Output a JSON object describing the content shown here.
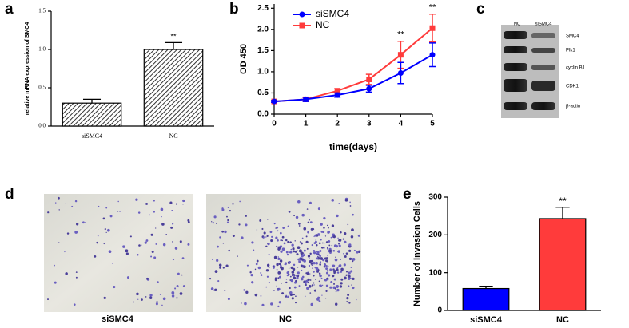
{
  "panels": [
    "a",
    "b",
    "c",
    "d",
    "e"
  ],
  "chart_data": [
    {
      "type": "bar",
      "ylabel": "relative mRNA expression of SMC4",
      "categories": [
        "siSMC4",
        "NC"
      ],
      "values": [
        0.3,
        1.0
      ],
      "errors": [
        0.05,
        0.09
      ],
      "color": "#555555",
      "hatch": true,
      "ylim": [
        0,
        1.5
      ],
      "yticks": [
        {
          "value": 0,
          "label": "0.0"
        },
        {
          "value": 0.5,
          "label": "0.5"
        },
        {
          "value": 1,
          "label": "1.0"
        },
        {
          "value": 1.5,
          "label": "1.5"
        }
      ],
      "annotations": [
        "**"
      ]
    },
    {
      "type": "line",
      "xlabel": "time(days)",
      "ylabel": "OD 450",
      "x": [
        0,
        1,
        2,
        3,
        4,
        5
      ],
      "series": [
        {
          "name": "siSMC4",
          "color": "#0000ff",
          "marker": "circle",
          "values": [
            0.3,
            0.35,
            0.45,
            0.6,
            0.97,
            1.4
          ],
          "errors": [
            0.02,
            0.05,
            0.05,
            0.08,
            0.25,
            0.28
          ]
        },
        {
          "name": "NC",
          "color": "#ff3b3b",
          "marker": "square",
          "values": [
            0.3,
            0.35,
            0.55,
            0.82,
            1.4,
            2.03
          ],
          "errors": [
            0.02,
            0.04,
            0.05,
            0.12,
            0.32,
            0.33
          ]
        }
      ],
      "xlim": [
        0,
        5
      ],
      "xticks": [
        0,
        1,
        2,
        3,
        4,
        5
      ],
      "ylim": [
        0,
        2.6
      ],
      "yticks": [
        {
          "value": 0,
          "label": "0.0"
        },
        {
          "value": 0.5,
          "label": "0.5"
        },
        {
          "value": 1,
          "label": "1.0"
        },
        {
          "value": 1.5,
          "label": "1.5"
        },
        {
          "value": 2,
          "label": "2.0"
        },
        {
          "value": 2.5,
          "label": "2.5"
        }
      ],
      "legend": "upper left",
      "annotations": [
        "**",
        "**"
      ]
    },
    {
      "type": "bar",
      "ylabel": "Number of Invasion Cells",
      "categories": [
        "siSMC4",
        "NC"
      ],
      "values": [
        58,
        243
      ],
      "errors": [
        6,
        30
      ],
      "colors": [
        "#0000ff",
        "#ff3b3b"
      ],
      "ylim": [
        0,
        300
      ],
      "yticks": [
        0,
        100,
        200,
        300
      ],
      "annotations": [
        "**"
      ]
    }
  ],
  "blot": {
    "lanes": [
      "NC",
      "siSMC4"
    ],
    "proteins": [
      "SMC4",
      "Plk1",
      "cyclin B1",
      "CDK1",
      "β-actin"
    ]
  },
  "images": {
    "labels": [
      "siSMC4",
      "NC"
    ]
  }
}
